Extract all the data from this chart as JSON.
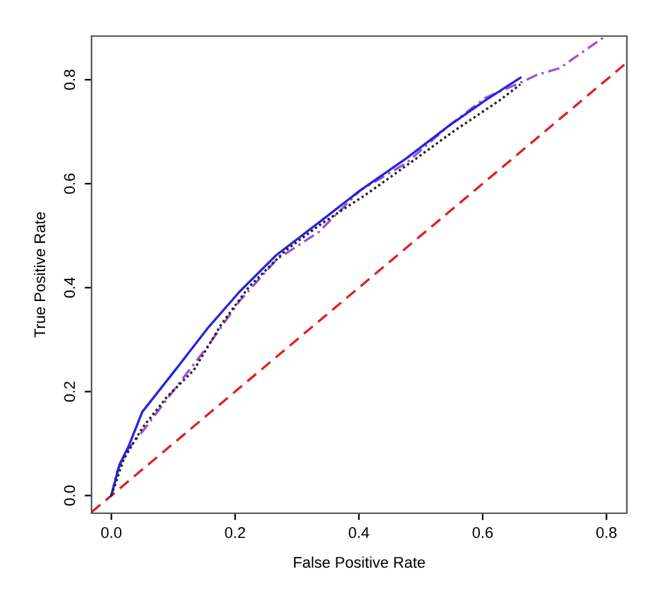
{
  "chart_data": {
    "type": "line",
    "xlabel": "False Positive Rate",
    "ylabel": "True Positive Rate",
    "xlim": [
      -0.032,
      0.833
    ],
    "ylim": [
      -0.034,
      0.884
    ],
    "xticks": [
      {
        "value": 0,
        "label": "0.0"
      },
      0.2,
      0.4,
      0.6,
      0.8
    ],
    "yticks": [
      {
        "value": 0,
        "label": "0.0"
      },
      0.2,
      0.4,
      0.6,
      0.8
    ],
    "grid": false,
    "legend": false,
    "series": [
      {
        "color": "#e02020",
        "line_style": "dashed",
        "x": [
          -0.032,
          0.833
        ],
        "values": [
          -0.032,
          0.833
        ]
      },
      {
        "color": "#222222",
        "line_style": "dotted",
        "x": [
          0,
          0.02,
          0.05,
          0.09,
          0.133,
          0.178,
          0.222,
          0.282,
          0.342,
          0.41,
          0.477,
          0.552,
          0.627,
          0.661
        ],
        "values": [
          0,
          0.07,
          0.13,
          0.19,
          0.241,
          0.33,
          0.401,
          0.472,
          0.525,
          0.578,
          0.635,
          0.7,
          0.76,
          0.791
        ]
      },
      {
        "color": "#9b4fe0",
        "line_style": "dashdot",
        "x": [
          0,
          0.009,
          0.028,
          0.058,
          0.103,
          0.155,
          0.207,
          0.267,
          0.335,
          0.402,
          0.477,
          0.545,
          0.604,
          0.664,
          0.687,
          0.724,
          0.777,
          0.796
        ],
        "values": [
          0,
          0.046,
          0.09,
          0.135,
          0.206,
          0.286,
          0.374,
          0.454,
          0.507,
          0.587,
          0.64,
          0.711,
          0.765,
          0.796,
          0.809,
          0.822,
          0.866,
          0.882
        ]
      },
      {
        "color": "#2525e0",
        "line_style": "solid",
        "x": [
          0,
          0.013,
          0.028,
          0.05,
          0.103,
          0.155,
          0.207,
          0.267,
          0.335,
          0.402,
          0.477,
          0.545,
          0.604,
          0.661
        ],
        "values": [
          0,
          0.059,
          0.095,
          0.161,
          0.241,
          0.321,
          0.392,
          0.463,
          0.525,
          0.587,
          0.649,
          0.711,
          0.76,
          0.804
        ]
      }
    ]
  }
}
